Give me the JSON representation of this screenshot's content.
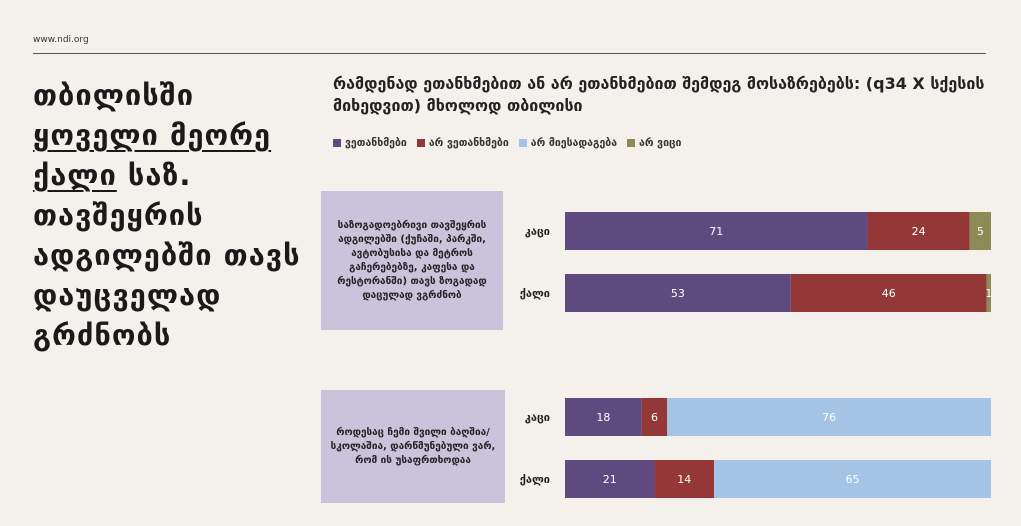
{
  "site": "www.ndi.org",
  "headline": {
    "part1": "თბილისში",
    "part2": "ყოველი მეორე",
    "part3": "ქალი",
    "part4": "საზ. თავშეყრის ადგილებში თავს დაუცველად გრძნობს"
  },
  "chart_data": {
    "type": "bar",
    "orientation": "horizontal-stacked-100",
    "title": "რამდენად ეთანხმებით ან არ ეთანხმებით შემდეგ მოსაზრებებს: (q34 X სქესის მიხედვით) მხოლოდ თბილისი",
    "legend_position": "top",
    "series": [
      {
        "name": "ვეთანხმები",
        "color": "#5e4a7e"
      },
      {
        "name": "არ ვეთანხმები",
        "color": "#933836"
      },
      {
        "name": "არ მიესადაგება",
        "color": "#a4c4e6"
      },
      {
        "name": "არ ვიცი",
        "color": "#8c8a55"
      }
    ],
    "groups": [
      {
        "question": "საზოგადოებრივი თავშეყრის ადგილებში (ქუჩაში, პარკში, ავტობუსისა და მეტროს გაჩერებებზე, კაფესა და რესტორანში) თავს ზოგადად დაცულად ვგრძნობ",
        "rows": [
          {
            "label": "კაცი",
            "values": [
              71,
              24,
              0,
              5
            ],
            "labels": [
              "71",
              "24",
              "",
              "5"
            ]
          },
          {
            "label": "ქალი",
            "values": [
              53,
              46,
              0,
              1
            ],
            "labels": [
              "53",
              "46",
              "",
              "1"
            ]
          }
        ]
      },
      {
        "question": "როდესაც ჩემი შვილი ბაღშია/სკოლაშია, დარწმუნებული ვარ, რომ ის უსაფრთხოდაა",
        "rows": [
          {
            "label": "კაცი",
            "values": [
              18,
              6,
              76,
              0
            ],
            "labels": [
              "18",
              "6",
              "76",
              ""
            ]
          },
          {
            "label": "ქალი",
            "values": [
              21,
              14,
              65,
              0
            ],
            "labels": [
              "21",
              "14",
              "65",
              ""
            ]
          }
        ]
      }
    ]
  }
}
